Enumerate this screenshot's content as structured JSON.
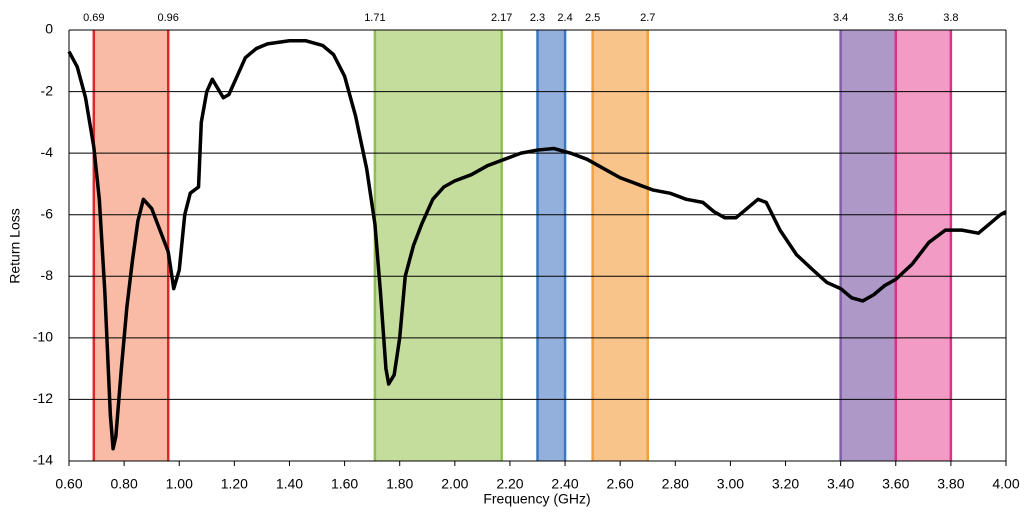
{
  "chart_data": {
    "type": "line",
    "x_label": "Frequency (GHz)",
    "y_label": "Return Loss",
    "xlim": [
      0.6,
      4.0
    ],
    "xticks": [
      {
        "value": 0.6,
        "label": "0.60"
      },
      {
        "value": 0.8,
        "label": "0.80"
      },
      {
        "value": 1.0,
        "label": "1.00"
      },
      {
        "value": 1.2,
        "label": "1.20"
      },
      {
        "value": 1.4,
        "label": "1.40"
      },
      {
        "value": 1.6,
        "label": "1.60"
      },
      {
        "value": 1.8,
        "label": "1.80"
      },
      {
        "value": 2.0,
        "label": "2.00"
      },
      {
        "value": 2.2,
        "label": "2.20"
      },
      {
        "value": 2.4,
        "label": "2.40"
      },
      {
        "value": 2.6,
        "label": "2.60"
      },
      {
        "value": 2.8,
        "label": "2.80"
      },
      {
        "value": 3.0,
        "label": "3.00"
      },
      {
        "value": 3.2,
        "label": "3.20"
      },
      {
        "value": 3.4,
        "label": "3.40"
      },
      {
        "value": 3.6,
        "label": "3.60"
      },
      {
        "value": 3.8,
        "label": "3.80"
      },
      {
        "value": 4.0,
        "label": "4.00"
      }
    ],
    "ylim": [
      -14,
      0
    ],
    "yticks": [
      -14,
      -12,
      -10,
      -8,
      -6,
      -4,
      -2,
      0
    ],
    "grid": true,
    "bands": [
      {
        "from": 0.69,
        "to": 0.96,
        "fill": "#f9bba5",
        "color": "#e0282a"
      },
      {
        "from": 1.71,
        "to": 2.17,
        "fill": "#c5dd9c",
        "color": "#8cc050"
      },
      {
        "from": 2.3,
        "to": 2.4,
        "fill": "#93b0dc",
        "color": "#3a78c0"
      },
      {
        "from": 2.5,
        "to": 2.7,
        "fill": "#f9c48a",
        "color": "#f0a040"
      },
      {
        "from": 3.4,
        "to": 3.6,
        "fill": "#ad98c8",
        "color": "#8060a8"
      },
      {
        "from": 3.6,
        "to": 3.8,
        "fill": "#f29bc4",
        "color": "#e0308a"
      }
    ],
    "x": [
      0.6,
      0.63,
      0.66,
      0.69,
      0.71,
      0.73,
      0.75,
      0.76,
      0.77,
      0.79,
      0.81,
      0.83,
      0.85,
      0.87,
      0.9,
      0.93,
      0.96,
      0.98,
      1.0,
      1.02,
      1.04,
      1.07,
      1.08,
      1.1,
      1.12,
      1.14,
      1.16,
      1.18,
      1.21,
      1.24,
      1.28,
      1.32,
      1.4,
      1.46,
      1.52,
      1.56,
      1.6,
      1.64,
      1.68,
      1.71,
      1.73,
      1.75,
      1.76,
      1.78,
      1.8,
      1.82,
      1.85,
      1.88,
      1.92,
      1.96,
      2.0,
      2.06,
      2.12,
      2.18,
      2.24,
      2.3,
      2.36,
      2.42,
      2.48,
      2.54,
      2.6,
      2.66,
      2.72,
      2.78,
      2.84,
      2.9,
      2.94,
      2.98,
      3.02,
      3.06,
      3.1,
      3.13,
      3.18,
      3.24,
      3.3,
      3.35,
      3.4,
      3.44,
      3.48,
      3.52,
      3.56,
      3.6,
      3.66,
      3.72,
      3.78,
      3.84,
      3.9,
      3.94,
      3.98,
      4.0
    ],
    "series": [
      {
        "color": "#000000",
        "values": [
          -0.7,
          -1.2,
          -2.2,
          -3.8,
          -5.5,
          -8.5,
          -12.5,
          -13.6,
          -13.2,
          -11.0,
          -9.0,
          -7.5,
          -6.2,
          -5.5,
          -5.8,
          -6.5,
          -7.2,
          -8.4,
          -7.8,
          -6.0,
          -5.3,
          -5.1,
          -3.0,
          -2.0,
          -1.6,
          -1.9,
          -2.2,
          -2.1,
          -1.5,
          -0.9,
          -0.6,
          -0.45,
          -0.35,
          -0.35,
          -0.5,
          -0.8,
          -1.5,
          -2.8,
          -4.5,
          -6.3,
          -8.5,
          -11.0,
          -11.5,
          -11.2,
          -10.0,
          -8.0,
          -7.0,
          -6.3,
          -5.5,
          -5.1,
          -4.9,
          -4.7,
          -4.4,
          -4.2,
          -4.0,
          -3.9,
          -3.85,
          -4.0,
          -4.2,
          -4.5,
          -4.8,
          -5.0,
          -5.2,
          -5.3,
          -5.5,
          -5.6,
          -5.9,
          -6.1,
          -6.1,
          -5.8,
          -5.5,
          -5.6,
          -6.5,
          -7.3,
          -7.8,
          -8.2,
          -8.4,
          -8.7,
          -8.8,
          -8.6,
          -8.3,
          -8.1,
          -7.6,
          -6.9,
          -6.5,
          -6.5,
          -6.6,
          -6.3,
          -6.0,
          -5.9
        ]
      }
    ]
  }
}
